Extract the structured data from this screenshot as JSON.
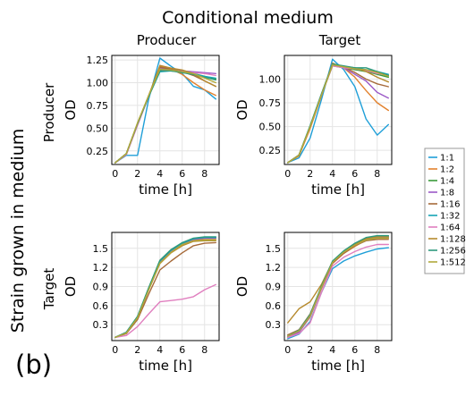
{
  "figure": {
    "title": "Conditional medium",
    "col_labels": [
      "Producer",
      "Target"
    ],
    "row_labels": [
      "Producer",
      "Target"
    ],
    "row_axis_label": "Strain grown in medium",
    "panel_tag": "(b)"
  },
  "legend": {
    "entries": [
      "1:1",
      "1:2",
      "1:4",
      "1:8",
      "1:16",
      "1:32",
      "1:64",
      "1:128",
      "1:256",
      "1:512"
    ],
    "colors": [
      "#1f9fd8",
      "#e2812d",
      "#3a9a3a",
      "#9b59c7",
      "#a66a3a",
      "#17a3b6",
      "#e07fbf",
      "#b68a2e",
      "#2e9a7e",
      "#b0a93a"
    ]
  },
  "chart_data": [
    {
      "type": "line",
      "panel": "producer-in-producer-medium",
      "xlabel": "time [h]",
      "ylabel": "OD",
      "xlim": [
        -0.3,
        9.3
      ],
      "ylim": [
        0.1,
        1.3
      ],
      "xticks": [
        0,
        2,
        4,
        6,
        8
      ],
      "yticks": [
        0.25,
        0.5,
        0.75,
        1.0,
        1.25
      ],
      "ytick_labels": [
        "0.25",
        "0.50",
        "0.75",
        "1.00",
        "1.25"
      ],
      "x": [
        0,
        1,
        2,
        3,
        4,
        5,
        6,
        7,
        8,
        9
      ],
      "series": [
        {
          "name": "1:1",
          "values": [
            0.12,
            0.2,
            0.2,
            0.82,
            1.27,
            1.18,
            1.1,
            0.96,
            0.92,
            0.82
          ]
        },
        {
          "name": "1:2",
          "values": [
            0.12,
            0.21,
            0.54,
            0.85,
            1.18,
            1.15,
            1.09,
            1.0,
            0.92,
            0.86
          ]
        },
        {
          "name": "1:4",
          "values": [
            0.12,
            0.22,
            0.55,
            0.85,
            1.14,
            1.13,
            1.12,
            1.1,
            1.07,
            1.04
          ]
        },
        {
          "name": "1:8",
          "values": [
            0.12,
            0.21,
            0.54,
            0.86,
            1.16,
            1.14,
            1.13,
            1.12,
            1.11,
            1.1
          ]
        },
        {
          "name": "1:16",
          "values": [
            0.12,
            0.22,
            0.55,
            0.85,
            1.17,
            1.15,
            1.12,
            1.08,
            1.02,
            0.96
          ]
        },
        {
          "name": "1:32",
          "values": [
            0.12,
            0.22,
            0.55,
            0.85,
            1.12,
            1.13,
            1.12,
            1.1,
            1.07,
            1.05
          ]
        },
        {
          "name": "1:64",
          "values": [
            0.12,
            0.21,
            0.53,
            0.85,
            1.15,
            1.13,
            1.12,
            1.11,
            1.1,
            1.08
          ]
        },
        {
          "name": "1:128",
          "values": [
            0.12,
            0.22,
            0.55,
            0.86,
            1.19,
            1.16,
            1.14,
            1.1,
            1.02,
            0.96
          ]
        },
        {
          "name": "1:256",
          "values": [
            0.12,
            0.22,
            0.55,
            0.85,
            1.13,
            1.13,
            1.11,
            1.09,
            1.06,
            1.03
          ]
        },
        {
          "name": "1:512",
          "values": [
            0.12,
            0.22,
            0.56,
            0.86,
            1.15,
            1.14,
            1.12,
            1.1,
            1.05,
            1.0
          ]
        }
      ]
    },
    {
      "type": "line",
      "panel": "producer-in-target-medium",
      "xlabel": "time [h]",
      "ylabel": "OD",
      "xlim": [
        -0.3,
        9.3
      ],
      "ylim": [
        0.1,
        1.25
      ],
      "xticks": [
        0,
        2,
        4,
        6,
        8
      ],
      "yticks": [
        0.25,
        0.5,
        0.75,
        1.0
      ],
      "ytick_labels": [
        "0.25",
        "0.50",
        "0.75",
        "1.00"
      ],
      "x": [
        0,
        1,
        2,
        3,
        4,
        5,
        6,
        7,
        8,
        9
      ],
      "series": [
        {
          "name": "1:1",
          "values": [
            0.12,
            0.17,
            0.38,
            0.78,
            1.21,
            1.1,
            0.92,
            0.58,
            0.41,
            0.52
          ]
        },
        {
          "name": "1:2",
          "values": [
            0.12,
            0.19,
            0.48,
            0.82,
            1.17,
            1.12,
            1.02,
            0.88,
            0.75,
            0.67
          ]
        },
        {
          "name": "1:4",
          "values": [
            0.12,
            0.2,
            0.5,
            0.83,
            1.14,
            1.12,
            1.1,
            1.08,
            1.05,
            1.02
          ]
        },
        {
          "name": "1:8",
          "values": [
            0.12,
            0.2,
            0.5,
            0.83,
            1.15,
            1.12,
            1.05,
            0.98,
            0.86,
            0.8
          ]
        },
        {
          "name": "1:16",
          "values": [
            0.12,
            0.2,
            0.5,
            0.84,
            1.16,
            1.13,
            1.07,
            1.0,
            0.95,
            0.92
          ]
        },
        {
          "name": "1:32",
          "values": [
            0.12,
            0.2,
            0.51,
            0.84,
            1.15,
            1.13,
            1.12,
            1.1,
            1.08,
            1.05
          ]
        },
        {
          "name": "1:64",
          "values": [
            0.12,
            0.2,
            0.5,
            0.83,
            1.14,
            1.12,
            1.11,
            1.09,
            1.06,
            1.04
          ]
        },
        {
          "name": "1:128",
          "values": [
            0.12,
            0.2,
            0.5,
            0.83,
            1.15,
            1.13,
            1.12,
            1.08,
            1.02,
            0.97
          ]
        },
        {
          "name": "1:256",
          "values": [
            0.12,
            0.2,
            0.51,
            0.84,
            1.16,
            1.14,
            1.12,
            1.12,
            1.08,
            1.04
          ]
        },
        {
          "name": "1:512",
          "values": [
            0.12,
            0.2,
            0.5,
            0.83,
            1.15,
            1.13,
            1.11,
            1.1,
            1.07,
            1.03
          ]
        }
      ]
    },
    {
      "type": "line",
      "panel": "target-in-producer-medium",
      "xlabel": "time [h]",
      "ylabel": "OD",
      "xlim": [
        -0.3,
        9.3
      ],
      "ylim": [
        0.05,
        1.75
      ],
      "xticks": [
        0,
        2,
        4,
        6,
        8
      ],
      "yticks": [
        0.3,
        0.6,
        0.9,
        1.2,
        1.5
      ],
      "ytick_labels": [
        "0.3",
        "0.6",
        "0.9",
        "1.2",
        "1.5"
      ],
      "x": [
        0,
        1,
        2,
        3,
        4,
        5,
        6,
        7,
        8,
        9
      ],
      "series": [
        {
          "name": "1:1",
          "values": [
            0.1,
            0.18,
            0.42,
            0.87,
            1.3,
            1.47,
            1.57,
            1.63,
            1.66,
            1.66
          ]
        },
        {
          "name": "1:2",
          "values": [
            0.1,
            0.17,
            0.4,
            0.85,
            1.27,
            1.45,
            1.56,
            1.63,
            1.65,
            1.65
          ]
        },
        {
          "name": "1:4",
          "values": [
            0.1,
            0.18,
            0.43,
            0.88,
            1.31,
            1.48,
            1.58,
            1.65,
            1.67,
            1.67
          ]
        },
        {
          "name": "1:8",
          "values": [
            0.1,
            0.18,
            0.42,
            0.87,
            1.29,
            1.46,
            1.57,
            1.64,
            1.66,
            1.66
          ]
        },
        {
          "name": "1:16",
          "values": [
            0.1,
            0.16,
            0.38,
            0.78,
            1.16,
            1.3,
            1.43,
            1.54,
            1.58,
            1.59
          ]
        },
        {
          "name": "1:32",
          "values": [
            0.1,
            0.18,
            0.43,
            0.87,
            1.3,
            1.47,
            1.58,
            1.65,
            1.67,
            1.67
          ]
        },
        {
          "name": "1:64",
          "values": [
            0.1,
            0.13,
            0.27,
            0.47,
            0.66,
            0.68,
            0.7,
            0.74,
            0.85,
            0.93
          ]
        },
        {
          "name": "1:128",
          "values": [
            0.1,
            0.17,
            0.41,
            0.85,
            1.26,
            1.43,
            1.54,
            1.61,
            1.62,
            1.62
          ]
        },
        {
          "name": "1:256",
          "values": [
            0.1,
            0.18,
            0.43,
            0.88,
            1.31,
            1.48,
            1.59,
            1.66,
            1.68,
            1.68
          ]
        },
        {
          "name": "1:512",
          "values": [
            0.1,
            0.17,
            0.41,
            0.85,
            1.27,
            1.44,
            1.56,
            1.62,
            1.63,
            1.63
          ]
        }
      ]
    },
    {
      "type": "line",
      "panel": "target-in-target-medium",
      "xlabel": "time [h]",
      "ylabel": "OD",
      "xlim": [
        -0.3,
        9.3
      ],
      "ylim": [
        0.05,
        1.75
      ],
      "xticks": [
        0,
        2,
        4,
        6,
        8
      ],
      "yticks": [
        0.3,
        0.6,
        0.9,
        1.2,
        1.5
      ],
      "ytick_labels": [
        "0.3",
        "0.6",
        "0.9",
        "1.2",
        "1.5"
      ],
      "x": [
        0,
        1,
        2,
        3,
        4,
        5,
        6,
        7,
        8,
        9
      ],
      "series": [
        {
          "name": "1:1",
          "values": [
            0.08,
            0.15,
            0.35,
            0.8,
            1.18,
            1.3,
            1.38,
            1.44,
            1.49,
            1.51
          ]
        },
        {
          "name": "1:2",
          "values": [
            0.1,
            0.18,
            0.42,
            0.86,
            1.26,
            1.42,
            1.53,
            1.63,
            1.66,
            1.66
          ]
        },
        {
          "name": "1:4",
          "values": [
            0.12,
            0.2,
            0.45,
            0.89,
            1.29,
            1.45,
            1.57,
            1.66,
            1.69,
            1.69
          ]
        },
        {
          "name": "1:8",
          "values": [
            0.1,
            0.18,
            0.43,
            0.87,
            1.27,
            1.43,
            1.55,
            1.64,
            1.67,
            1.67
          ]
        },
        {
          "name": "1:16",
          "values": [
            0.14,
            0.22,
            0.47,
            0.89,
            1.27,
            1.42,
            1.54,
            1.62,
            1.64,
            1.64
          ]
        },
        {
          "name": "1:32",
          "values": [
            0.12,
            0.21,
            0.45,
            0.89,
            1.29,
            1.45,
            1.57,
            1.66,
            1.69,
            1.69
          ]
        },
        {
          "name": "1:64",
          "values": [
            0.1,
            0.16,
            0.33,
            0.8,
            1.22,
            1.36,
            1.45,
            1.52,
            1.56,
            1.56
          ]
        },
        {
          "name": "1:128",
          "values": [
            0.33,
            0.55,
            0.66,
            0.93,
            1.29,
            1.44,
            1.56,
            1.65,
            1.68,
            1.68
          ]
        },
        {
          "name": "1:256",
          "values": [
            0.12,
            0.21,
            0.46,
            0.9,
            1.3,
            1.46,
            1.58,
            1.67,
            1.7,
            1.7
          ]
        },
        {
          "name": "1:512",
          "values": [
            0.12,
            0.2,
            0.44,
            0.88,
            1.28,
            1.44,
            1.55,
            1.63,
            1.66,
            1.66
          ]
        }
      ]
    }
  ]
}
